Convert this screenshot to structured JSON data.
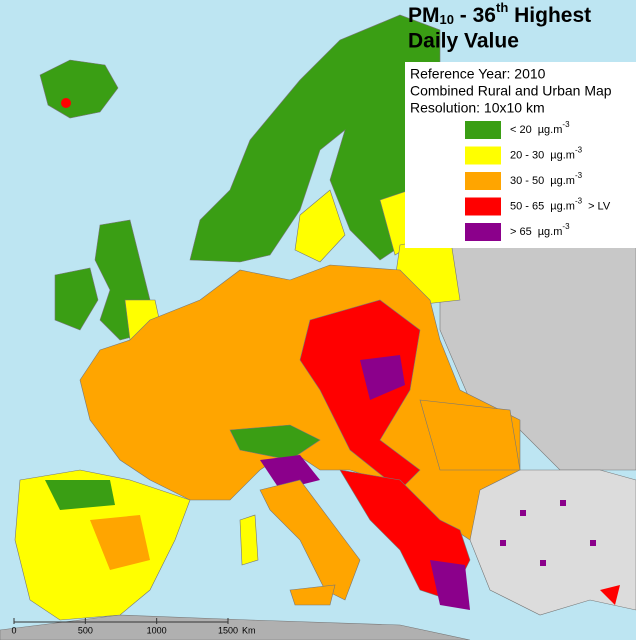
{
  "title": {
    "main": "PM",
    "sub": "10",
    "mid": " - 36",
    "sup": "th",
    "rest": " Highest",
    "line2": "Daily Value"
  },
  "info": [
    "Reference Year: 2010",
    "Combined Rural and Urban Map",
    "Resolution: 10x10 km"
  ],
  "legend": [
    {
      "range": "< 20",
      "unit": "µg.m",
      "exponent": "-3",
      "color": "#3a9e14"
    },
    {
      "range": "20 - 30",
      "unit": "µg.m",
      "exponent": "-3",
      "color": "#ffff00"
    },
    {
      "range": "30 - 50",
      "unit": "µg.m",
      "exponent": "-3",
      "color": "#ffa500"
    },
    {
      "range": "50 - 65",
      "unit": "µg.m",
      "exponent": "-3",
      "color": "#ff0000",
      "note": "> LV"
    },
    {
      "range": ">  65",
      "unit": "µg.m",
      "exponent": "-3",
      "color": "#8b008b"
    }
  ],
  "scale": {
    "ticks": [
      0,
      500,
      1000,
      1500
    ],
    "unit": "Km"
  }
}
